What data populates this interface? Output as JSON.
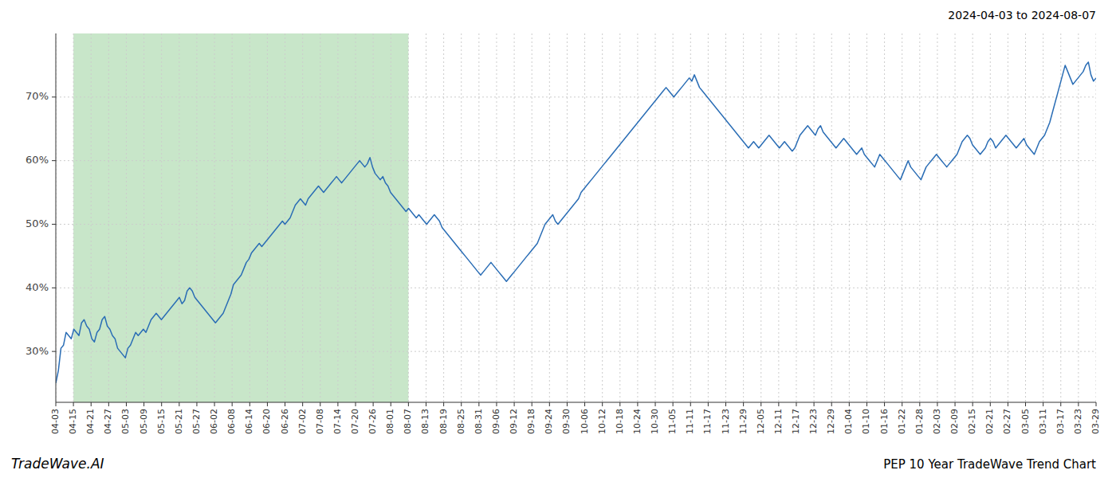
{
  "chart_data": {
    "type": "line",
    "title": "PEP 10 Year TradeWave Trend Chart",
    "subtitle": "2024-04-03 to 2024-08-07",
    "annotations": [
      "TradeWave.AI"
    ],
    "color": "#2a6db5",
    "grid": true,
    "shade": {
      "x": [
        6.8475,
        136.9492
      ],
      "color": "#c8e6c9"
    },
    "xlim": [
      0,
      404
    ],
    "xticks": [
      {
        "value": 0,
        "label": "04-03"
      },
      {
        "value": 6.8475,
        "label": "04-15"
      },
      {
        "value": 13.6949,
        "label": "04-21"
      },
      {
        "value": 20.5424,
        "label": "04-27"
      },
      {
        "value": 27.3898,
        "label": "05-03"
      },
      {
        "value": 34.2373,
        "label": "05-09"
      },
      {
        "value": 41.0847,
        "label": "05-15"
      },
      {
        "value": 47.9322,
        "label": "05-21"
      },
      {
        "value": 54.7797,
        "label": "05-27"
      },
      {
        "value": 61.6271,
        "label": "06-02"
      },
      {
        "value": 68.4746,
        "label": "06-08"
      },
      {
        "value": 75.322,
        "label": "06-14"
      },
      {
        "value": 82.1695,
        "label": "06-20"
      },
      {
        "value": 89.0169,
        "label": "06-26"
      },
      {
        "value": 95.8644,
        "label": "07-02"
      },
      {
        "value": 102.7119,
        "label": "07-08"
      },
      {
        "value": 109.5593,
        "label": "07-14"
      },
      {
        "value": 116.4068,
        "label": "07-20"
      },
      {
        "value": 123.2542,
        "label": "07-26"
      },
      {
        "value": 130.1017,
        "label": "08-01"
      },
      {
        "value": 136.9492,
        "label": "08-07"
      },
      {
        "value": 143.7966,
        "label": "08-13"
      },
      {
        "value": 150.6441,
        "label": "08-19"
      },
      {
        "value": 157.4915,
        "label": "08-25"
      },
      {
        "value": 164.339,
        "label": "08-31"
      },
      {
        "value": 171.1864,
        "label": "09-06"
      },
      {
        "value": 178.0339,
        "label": "09-12"
      },
      {
        "value": 184.8814,
        "label": "09-18"
      },
      {
        "value": 191.7288,
        "label": "09-24"
      },
      {
        "value": 198.5763,
        "label": "09-30"
      },
      {
        "value": 205.4237,
        "label": "10-06"
      },
      {
        "value": 212.2712,
        "label": "10-12"
      },
      {
        "value": 219.1186,
        "label": "10-18"
      },
      {
        "value": 225.9661,
        "label": "10-24"
      },
      {
        "value": 232.8136,
        "label": "10-30"
      },
      {
        "value": 239.661,
        "label": "11-05"
      },
      {
        "value": 246.5085,
        "label": "11-11"
      },
      {
        "value": 253.3559,
        "label": "11-17"
      },
      {
        "value": 260.2034,
        "label": "11-23"
      },
      {
        "value": 267.0508,
        "label": "11-29"
      },
      {
        "value": 273.8983,
        "label": "12-05"
      },
      {
        "value": 280.7458,
        "label": "12-11"
      },
      {
        "value": 287.5932,
        "label": "12-17"
      },
      {
        "value": 294.4407,
        "label": "12-23"
      },
      {
        "value": 301.2881,
        "label": "12-29"
      },
      {
        "value": 308.1356,
        "label": "01-04"
      },
      {
        "value": 314.9831,
        "label": "01-10"
      },
      {
        "value": 321.8305,
        "label": "01-16"
      },
      {
        "value": 328.678,
        "label": "01-22"
      },
      {
        "value": 335.5254,
        "label": "01-28"
      },
      {
        "value": 342.3729,
        "label": "02-03"
      },
      {
        "value": 349.2203,
        "label": "02-09"
      },
      {
        "value": 356.0678,
        "label": "02-15"
      },
      {
        "value": 362.9153,
        "label": "02-21"
      },
      {
        "value": 369.7627,
        "label": "02-27"
      },
      {
        "value": 376.6102,
        "label": "03-05"
      },
      {
        "value": 383.4576,
        "label": "03-11"
      },
      {
        "value": 390.3051,
        "label": "03-17"
      },
      {
        "value": 397.1525,
        "label": "03-23"
      },
      {
        "value": 404,
        "label": "03-29"
      }
    ],
    "ylim": [
      22,
      80
    ],
    "yticks": [
      {
        "value": 30,
        "label": "30%"
      },
      {
        "value": 40,
        "label": "40%"
      },
      {
        "value": 50,
        "label": "50%"
      },
      {
        "value": 60,
        "label": "60%"
      },
      {
        "value": 70,
        "label": "70%"
      }
    ],
    "values": [
      25.0,
      27.0,
      30.5,
      31.0,
      33.0,
      32.5,
      32.0,
      33.5,
      33.0,
      32.5,
      34.5,
      35.0,
      34.0,
      33.5,
      32.0,
      31.5,
      33.0,
      33.5,
      35.0,
      35.5,
      34.0,
      33.5,
      32.5,
      32.0,
      30.5,
      30.0,
      29.5,
      29.0,
      30.5,
      31.0,
      32.0,
      33.0,
      32.5,
      33.0,
      33.5,
      33.0,
      34.0,
      35.0,
      35.5,
      36.0,
      35.5,
      35.0,
      35.5,
      36.0,
      36.5,
      37.0,
      37.5,
      38.0,
      38.5,
      37.5,
      38.0,
      39.5,
      40.0,
      39.5,
      38.5,
      38.0,
      37.5,
      37.0,
      36.5,
      36.0,
      35.5,
      35.0,
      34.5,
      35.0,
      35.5,
      36.0,
      37.0,
      38.0,
      39.0,
      40.5,
      41.0,
      41.5,
      42.0,
      43.0,
      44.0,
      44.5,
      45.5,
      46.0,
      46.5,
      47.0,
      46.5,
      47.0,
      47.5,
      48.0,
      48.5,
      49.0,
      49.5,
      50.0,
      50.5,
      50.0,
      50.5,
      51.0,
      52.0,
      53.0,
      53.5,
      54.0,
      53.5,
      53.0,
      54.0,
      54.5,
      55.0,
      55.5,
      56.0,
      55.5,
      55.0,
      55.5,
      56.0,
      56.5,
      57.0,
      57.5,
      57.0,
      56.5,
      57.0,
      57.5,
      58.0,
      58.5,
      59.0,
      59.5,
      60.0,
      59.5,
      59.0,
      59.5,
      60.5,
      59.0,
      58.0,
      57.5,
      57.0,
      57.5,
      56.5,
      56.0,
      55.0,
      54.5,
      54.0,
      53.5,
      53.0,
      52.5,
      52.0,
      52.5,
      52.0,
      51.5,
      51.0,
      51.5,
      51.0,
      50.5,
      50.0,
      50.5,
      51.0,
      51.5,
      51.0,
      50.5,
      49.5,
      49.0,
      48.5,
      48.0,
      47.5,
      47.0,
      46.5,
      46.0,
      45.5,
      45.0,
      44.5,
      44.0,
      43.5,
      43.0,
      42.5,
      42.0,
      42.5,
      43.0,
      43.5,
      44.0,
      43.5,
      43.0,
      42.5,
      42.0,
      41.5,
      41.0,
      41.5,
      42.0,
      42.5,
      43.0,
      43.5,
      44.0,
      44.5,
      45.0,
      45.5,
      46.0,
      46.5,
      47.0,
      48.0,
      49.0,
      50.0,
      50.5,
      51.0,
      51.5,
      50.5,
      50.0,
      50.5,
      51.0,
      51.5,
      52.0,
      52.5,
      53.0,
      53.5,
      54.0,
      55.0,
      55.5,
      56.0,
      56.5,
      57.0,
      57.5,
      58.0,
      58.5,
      59.0,
      59.5,
      60.0,
      60.5,
      61.0,
      61.5,
      62.0,
      62.5,
      63.0,
      63.5,
      64.0,
      64.5,
      65.0,
      65.5,
      66.0,
      66.5,
      67.0,
      67.5,
      68.0,
      68.5,
      69.0,
      69.5,
      70.0,
      70.5,
      71.0,
      71.5,
      71.0,
      70.5,
      70.0,
      70.5,
      71.0,
      71.5,
      72.0,
      72.5,
      73.0,
      72.5,
      73.5,
      72.5,
      71.5,
      71.0,
      70.5,
      70.0,
      69.5,
      69.0,
      68.5,
      68.0,
      67.5,
      67.0,
      66.5,
      66.0,
      65.5,
      65.0,
      64.5,
      64.0,
      63.5,
      63.0,
      62.5,
      62.0,
      62.5,
      63.0,
      62.5,
      62.0,
      62.5,
      63.0,
      63.5,
      64.0,
      63.5,
      63.0,
      62.5,
      62.0,
      62.5,
      63.0,
      62.5,
      62.0,
      61.5,
      62.0,
      63.0,
      64.0,
      64.5,
      65.0,
      65.5,
      65.0,
      64.5,
      64.0,
      65.0,
      65.5,
      64.5,
      64.0,
      63.5,
      63.0,
      62.5,
      62.0,
      62.5,
      63.0,
      63.5,
      63.0,
      62.5,
      62.0,
      61.5,
      61.0,
      61.5,
      62.0,
      61.0,
      60.5,
      60.0,
      59.5,
      59.0,
      60.0,
      61.0,
      60.5,
      60.0,
      59.5,
      59.0,
      58.5,
      58.0,
      57.5,
      57.0,
      58.0,
      59.0,
      60.0,
      59.0,
      58.5,
      58.0,
      57.5,
      57.0,
      58.0,
      59.0,
      59.5,
      60.0,
      60.5,
      61.0,
      60.5,
      60.0,
      59.5,
      59.0,
      59.5,
      60.0,
      60.5,
      61.0,
      62.0,
      63.0,
      63.5,
      64.0,
      63.5,
      62.5,
      62.0,
      61.5,
      61.0,
      61.5,
      62.0,
      63.0,
      63.5,
      63.0,
      62.0,
      62.5,
      63.0,
      63.5,
      64.0,
      63.5,
      63.0,
      62.5,
      62.0,
      62.5,
      63.0,
      63.5,
      62.5,
      62.0,
      61.5,
      61.0,
      62.0,
      63.0,
      63.5,
      64.0,
      65.0,
      66.0,
      67.5,
      69.0,
      70.5,
      72.0,
      73.5,
      75.0,
      74.0,
      73.0,
      72.0,
      72.5,
      73.0,
      73.5,
      74.0,
      75.0,
      75.5,
      73.5,
      72.5,
      73.0
    ]
  }
}
